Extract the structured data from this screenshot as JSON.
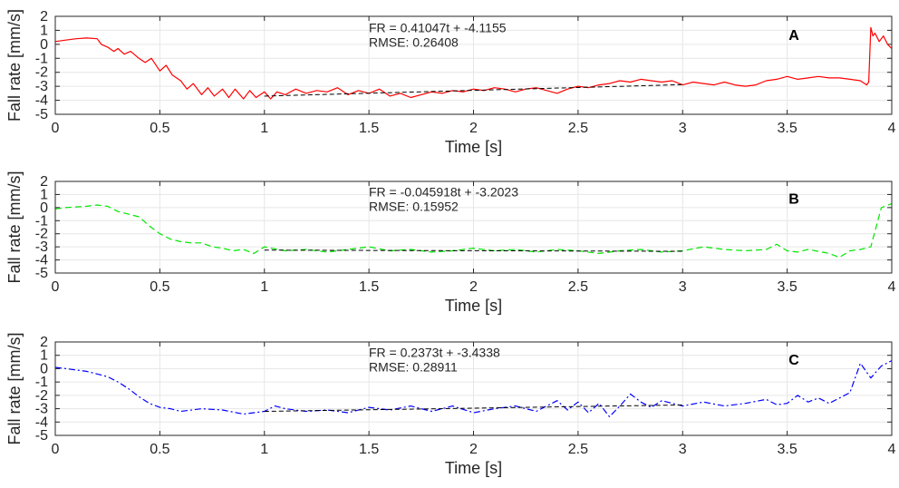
{
  "chart_data": [
    {
      "type": "line",
      "panel_label": "A",
      "xlabel": "Time [s]",
      "ylabel": "Fall rate [mm/s]",
      "xlim": [
        0,
        4
      ],
      "ylim": [
        -5,
        2
      ],
      "xticks": [
        "0",
        "0.5",
        "1",
        "1.5",
        "2",
        "2.5",
        "3",
        "3.5",
        "4"
      ],
      "yticks": [
        "-5",
        "-4",
        "-3",
        "-2",
        "-1",
        "0",
        "1",
        "2"
      ],
      "grid": true,
      "series_style": {
        "color": "#ff0000",
        "dash": "solid"
      },
      "series": [
        {
          "x": [
            0,
            0.05,
            0.1,
            0.15,
            0.2,
            0.22,
            0.25,
            0.28,
            0.3,
            0.33,
            0.36,
            0.4,
            0.43,
            0.46,
            0.5,
            0.53,
            0.56,
            0.6,
            0.63,
            0.66,
            0.7,
            0.73,
            0.76,
            0.8,
            0.83,
            0.86,
            0.9,
            0.93,
            0.96,
            1.0,
            1.03,
            1.06,
            1.1,
            1.15,
            1.2,
            1.25,
            1.3,
            1.35,
            1.4,
            1.45,
            1.5,
            1.55,
            1.6,
            1.65,
            1.7,
            1.75,
            1.8,
            1.85,
            1.9,
            1.95,
            2.0,
            2.05,
            2.1,
            2.15,
            2.2,
            2.25,
            2.3,
            2.35,
            2.4,
            2.45,
            2.5,
            2.55,
            2.6,
            2.65,
            2.7,
            2.75,
            2.8,
            2.85,
            2.9,
            2.95,
            3.0,
            3.05,
            3.1,
            3.15,
            3.2,
            3.25,
            3.3,
            3.35,
            3.4,
            3.45,
            3.5,
            3.55,
            3.6,
            3.65,
            3.7,
            3.75,
            3.8,
            3.85,
            3.88,
            3.89,
            3.9,
            3.91,
            3.92,
            3.94,
            3.96,
            3.98,
            4.0
          ],
          "y": [
            0.2,
            0.3,
            0.4,
            0.45,
            0.4,
            0.0,
            -0.2,
            -0.5,
            -0.3,
            -0.7,
            -0.5,
            -1.0,
            -1.3,
            -1.0,
            -1.9,
            -1.5,
            -2.2,
            -2.6,
            -3.2,
            -2.8,
            -3.6,
            -3.1,
            -3.7,
            -3.2,
            -3.8,
            -3.2,
            -3.9,
            -3.3,
            -3.8,
            -3.4,
            -3.9,
            -3.4,
            -3.6,
            -3.2,
            -3.5,
            -3.3,
            -3.4,
            -3.1,
            -3.6,
            -3.3,
            -3.5,
            -3.2,
            -3.7,
            -3.5,
            -3.8,
            -3.6,
            -3.4,
            -3.5,
            -3.3,
            -3.4,
            -3.2,
            -3.3,
            -3.1,
            -3.2,
            -3.4,
            -3.2,
            -3.1,
            -3.3,
            -3.5,
            -3.2,
            -3.0,
            -3.1,
            -2.9,
            -2.8,
            -2.6,
            -2.7,
            -2.5,
            -2.6,
            -2.7,
            -2.6,
            -2.9,
            -2.7,
            -2.8,
            -2.9,
            -2.7,
            -2.9,
            -3.0,
            -2.9,
            -2.6,
            -2.5,
            -2.3,
            -2.5,
            -2.4,
            -2.3,
            -2.4,
            -2.4,
            -2.5,
            -2.6,
            -2.9,
            -2.7,
            1.2,
            0.6,
            0.8,
            0.2,
            0.6,
            0.0,
            -0.3
          ]
        }
      ],
      "fit": {
        "x": [
          1,
          3
        ],
        "y": [
          -3.7,
          -2.88
        ],
        "color": "#000000",
        "dash": "dashed"
      },
      "annotation": {
        "equation": "FR = 0.41047t + -4.1155",
        "rmse": "RMSE: 0.26408"
      }
    },
    {
      "type": "line",
      "panel_label": "B",
      "xlabel": "Time [s]",
      "ylabel": "Fall rate [mm/s]",
      "xlim": [
        0,
        4
      ],
      "ylim": [
        -5,
        2
      ],
      "xticks": [
        "0",
        "0.5",
        "1",
        "1.5",
        "2",
        "2.5",
        "3",
        "3.5",
        "4"
      ],
      "yticks": [
        "-5",
        "-4",
        "-3",
        "-2",
        "-1",
        "0",
        "1",
        "2"
      ],
      "grid": true,
      "series_style": {
        "color": "#00e600",
        "dash": "dashed"
      },
      "series": [
        {
          "x": [
            0,
            0.05,
            0.1,
            0.15,
            0.2,
            0.25,
            0.3,
            0.35,
            0.4,
            0.45,
            0.5,
            0.55,
            0.6,
            0.65,
            0.7,
            0.75,
            0.8,
            0.85,
            0.9,
            0.95,
            1.0,
            1.1,
            1.2,
            1.3,
            1.4,
            1.5,
            1.6,
            1.7,
            1.8,
            1.9,
            2.0,
            2.1,
            2.2,
            2.3,
            2.4,
            2.5,
            2.6,
            2.7,
            2.8,
            2.9,
            3.0,
            3.1,
            3.2,
            3.3,
            3.4,
            3.45,
            3.5,
            3.55,
            3.6,
            3.7,
            3.75,
            3.8,
            3.85,
            3.9,
            3.95,
            4.0
          ],
          "y": [
            -0.1,
            0.0,
            0.05,
            0.1,
            0.2,
            0.1,
            -0.3,
            -0.5,
            -0.7,
            -1.4,
            -2.0,
            -2.4,
            -2.6,
            -2.7,
            -2.7,
            -3.0,
            -3.1,
            -3.3,
            -3.2,
            -3.5,
            -3.0,
            -3.3,
            -3.2,
            -3.4,
            -3.2,
            -3.0,
            -3.3,
            -3.2,
            -3.4,
            -3.3,
            -3.1,
            -3.3,
            -3.2,
            -3.4,
            -3.2,
            -3.3,
            -3.5,
            -3.3,
            -3.2,
            -3.4,
            -3.3,
            -3.0,
            -3.2,
            -3.3,
            -3.2,
            -2.8,
            -3.3,
            -3.4,
            -3.2,
            -3.5,
            -3.8,
            -3.3,
            -3.2,
            -3.0,
            0.0,
            0.3
          ]
        }
      ],
      "fit": {
        "x": [
          1,
          3
        ],
        "y": [
          -3.25,
          -3.34
        ],
        "color": "#000000",
        "dash": "dashed"
      },
      "annotation": {
        "equation": "FR = -0.045918t + -3.2023",
        "rmse": "RMSE: 0.15952"
      }
    },
    {
      "type": "line",
      "panel_label": "C",
      "xlabel": "Time [s]",
      "ylabel": "Fall rate [mm/s]",
      "xlim": [
        0,
        4
      ],
      "ylim": [
        -5,
        2
      ],
      "xticks": [
        "0",
        "0.5",
        "1",
        "1.5",
        "2",
        "2.5",
        "3",
        "3.5",
        "4"
      ],
      "yticks": [
        "-5",
        "-4",
        "-3",
        "-2",
        "-1",
        "0",
        "1",
        "2"
      ],
      "grid": true,
      "series_style": {
        "color": "#0000ff",
        "dash": "dashdot"
      },
      "series": [
        {
          "x": [
            0,
            0.05,
            0.1,
            0.15,
            0.2,
            0.25,
            0.3,
            0.35,
            0.4,
            0.45,
            0.5,
            0.55,
            0.6,
            0.7,
            0.8,
            0.9,
            1.0,
            1.05,
            1.1,
            1.2,
            1.3,
            1.4,
            1.5,
            1.6,
            1.7,
            1.8,
            1.9,
            2.0,
            2.1,
            2.2,
            2.3,
            2.4,
            2.45,
            2.5,
            2.55,
            2.6,
            2.65,
            2.7,
            2.75,
            2.8,
            2.85,
            2.9,
            3.0,
            3.1,
            3.2,
            3.3,
            3.4,
            3.45,
            3.5,
            3.55,
            3.6,
            3.65,
            3.7,
            3.75,
            3.8,
            3.85,
            3.9,
            3.95,
            4.0
          ],
          "y": [
            0.1,
            0.0,
            -0.1,
            -0.2,
            -0.4,
            -0.6,
            -1.0,
            -1.5,
            -2.1,
            -2.6,
            -2.9,
            -3.0,
            -3.2,
            -3.0,
            -3.1,
            -3.4,
            -3.2,
            -2.8,
            -3.0,
            -3.2,
            -3.1,
            -3.3,
            -2.9,
            -3.1,
            -2.8,
            -3.2,
            -2.8,
            -3.3,
            -3.0,
            -2.8,
            -3.2,
            -2.4,
            -3.1,
            -2.5,
            -3.3,
            -2.6,
            -3.6,
            -2.8,
            -1.9,
            -2.5,
            -2.9,
            -2.4,
            -2.8,
            -2.5,
            -2.8,
            -2.6,
            -2.3,
            -2.7,
            -2.6,
            -2.0,
            -2.5,
            -2.2,
            -2.6,
            -2.2,
            -1.8,
            0.4,
            -0.7,
            0.2,
            0.6
          ]
        }
      ],
      "fit": {
        "x": [
          1,
          3
        ],
        "y": [
          -3.2,
          -2.72
        ],
        "color": "#000000",
        "dash": "dashed"
      },
      "annotation": {
        "equation": "FR = 0.2373t + -3.4338",
        "rmse": "RMSE: 0.28911"
      }
    }
  ]
}
